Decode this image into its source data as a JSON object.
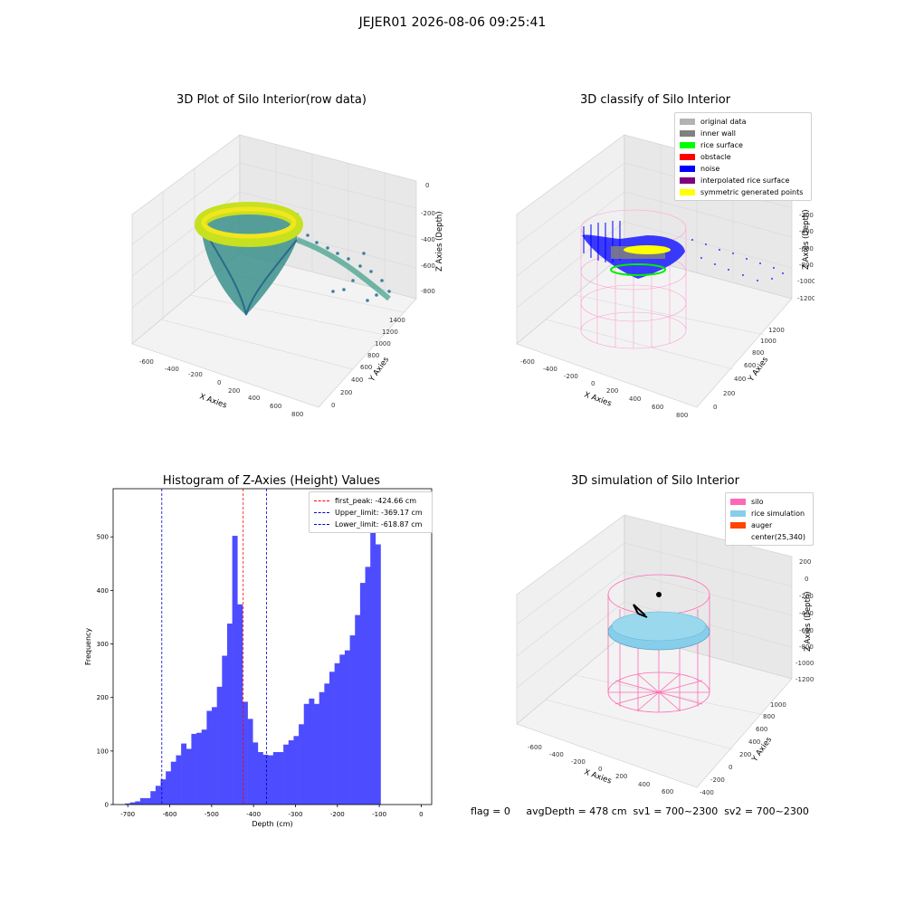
{
  "figure": {
    "suptitle": "JEJER01 2026-08-06 09:25:41",
    "footer": "flag = 0     avgDepth = 478 cm  sv1 = 700~2300  sv2 = 700~2300"
  },
  "panels": {
    "raw": {
      "title": "3D Plot of Silo Interior(row data)",
      "xlabel": "X Axies",
      "ylabel": "Y Axies",
      "zlabel": "Z Axies (Depth)",
      "xticks": [
        "-600",
        "-400",
        "-200",
        "0",
        "200",
        "400",
        "600",
        "800"
      ],
      "yticks": [
        "0",
        "200",
        "400",
        "600",
        "800",
        "1000",
        "1200",
        "1400"
      ],
      "zticks": [
        "0",
        "-200",
        "-400",
        "-600",
        "-800"
      ]
    },
    "classify": {
      "title": "3D classify of Silo Interior",
      "xlabel": "X Axies",
      "ylabel": "Y Axies",
      "zlabel": "Z Axies (Depth)",
      "xticks": [
        "-600",
        "-400",
        "-200",
        "0",
        "200",
        "400",
        "600",
        "800"
      ],
      "yticks": [
        "0",
        "200",
        "400",
        "600",
        "800",
        "1000",
        "1200"
      ],
      "zticks": [
        "200",
        "0",
        "-200",
        "-400",
        "-600",
        "-800",
        "-1000",
        "-1200"
      ],
      "legend": [
        {
          "label": "original data",
          "color": "#b3b3b3"
        },
        {
          "label": "inner wall",
          "color": "#808080"
        },
        {
          "label": "rice surface",
          "color": "#00ff00"
        },
        {
          "label": "obstacle",
          "color": "#ff0000"
        },
        {
          "label": "noise",
          "color": "#0000ff"
        },
        {
          "label": "interpolated rice surface",
          "color": "#800080"
        },
        {
          "label": "symmetric generated points",
          "color": "#ffff00"
        }
      ]
    },
    "histogram": {
      "title": "Histogram of Z-Axies (Height) Values",
      "legend": [
        {
          "label": "first_peak: -424.66 cm",
          "color": "#ff0000"
        },
        {
          "label": "Upper_limit: -369.17 cm",
          "color": "#0000cc"
        },
        {
          "label": "Lower_limit: -618.87 cm",
          "color": "#0000cc"
        }
      ]
    },
    "simulation": {
      "title": "3D simulation of Silo Interior",
      "xlabel": "X Axies",
      "ylabel": "Y Axies",
      "zlabel": "Z Axies (Depth)",
      "xticks": [
        "-600",
        "-400",
        "-200",
        "0",
        "200",
        "400",
        "600"
      ],
      "yticks": [
        "-400",
        "-200",
        "0",
        "200",
        "400",
        "600",
        "800",
        "1000"
      ],
      "zticks": [
        "200",
        "0",
        "-200",
        "-400",
        "-600",
        "-800",
        "-1000",
        "-1200"
      ],
      "legend": [
        {
          "label": "silo",
          "color": "#ff69b4"
        },
        {
          "label": "rice simulation",
          "color": "#87ceeb"
        },
        {
          "label": "auger",
          "color": "#ff4500"
        },
        {
          "label": "center(25,340)",
          "color": "#ffffff"
        }
      ]
    }
  },
  "chart_data": {
    "type": "bar",
    "title": "Histogram of Z-Axies (Height) Values",
    "xlabel": "Depth (cm)",
    "ylabel": "Frequency",
    "xlim": [
      -735,
      25
    ],
    "ylim": [
      0,
      590
    ],
    "xticks": [
      -700,
      -600,
      -500,
      -400,
      -300,
      -200,
      -100,
      0
    ],
    "yticks": [
      0,
      100,
      200,
      300,
      400,
      500
    ],
    "bar_color": "#4d4dff",
    "bin_start": -707,
    "bin_width": 12.2,
    "values": [
      2,
      4,
      6,
      12,
      12,
      25,
      35,
      47,
      62,
      80,
      92,
      114,
      104,
      132,
      134,
      140,
      175,
      182,
      220,
      278,
      338,
      502,
      374,
      192,
      160,
      116,
      98,
      93,
      92,
      98,
      98,
      112,
      120,
      128,
      150,
      188,
      198,
      188,
      210,
      226,
      248,
      264,
      280,
      288,
      316,
      354,
      414,
      444,
      558,
      486
    ],
    "vlines": [
      {
        "x": -424.66,
        "color": "#ff0000"
      },
      {
        "x": -369.17,
        "color": "#0000cc"
      },
      {
        "x": -618.87,
        "color": "#0000cc"
      }
    ]
  }
}
